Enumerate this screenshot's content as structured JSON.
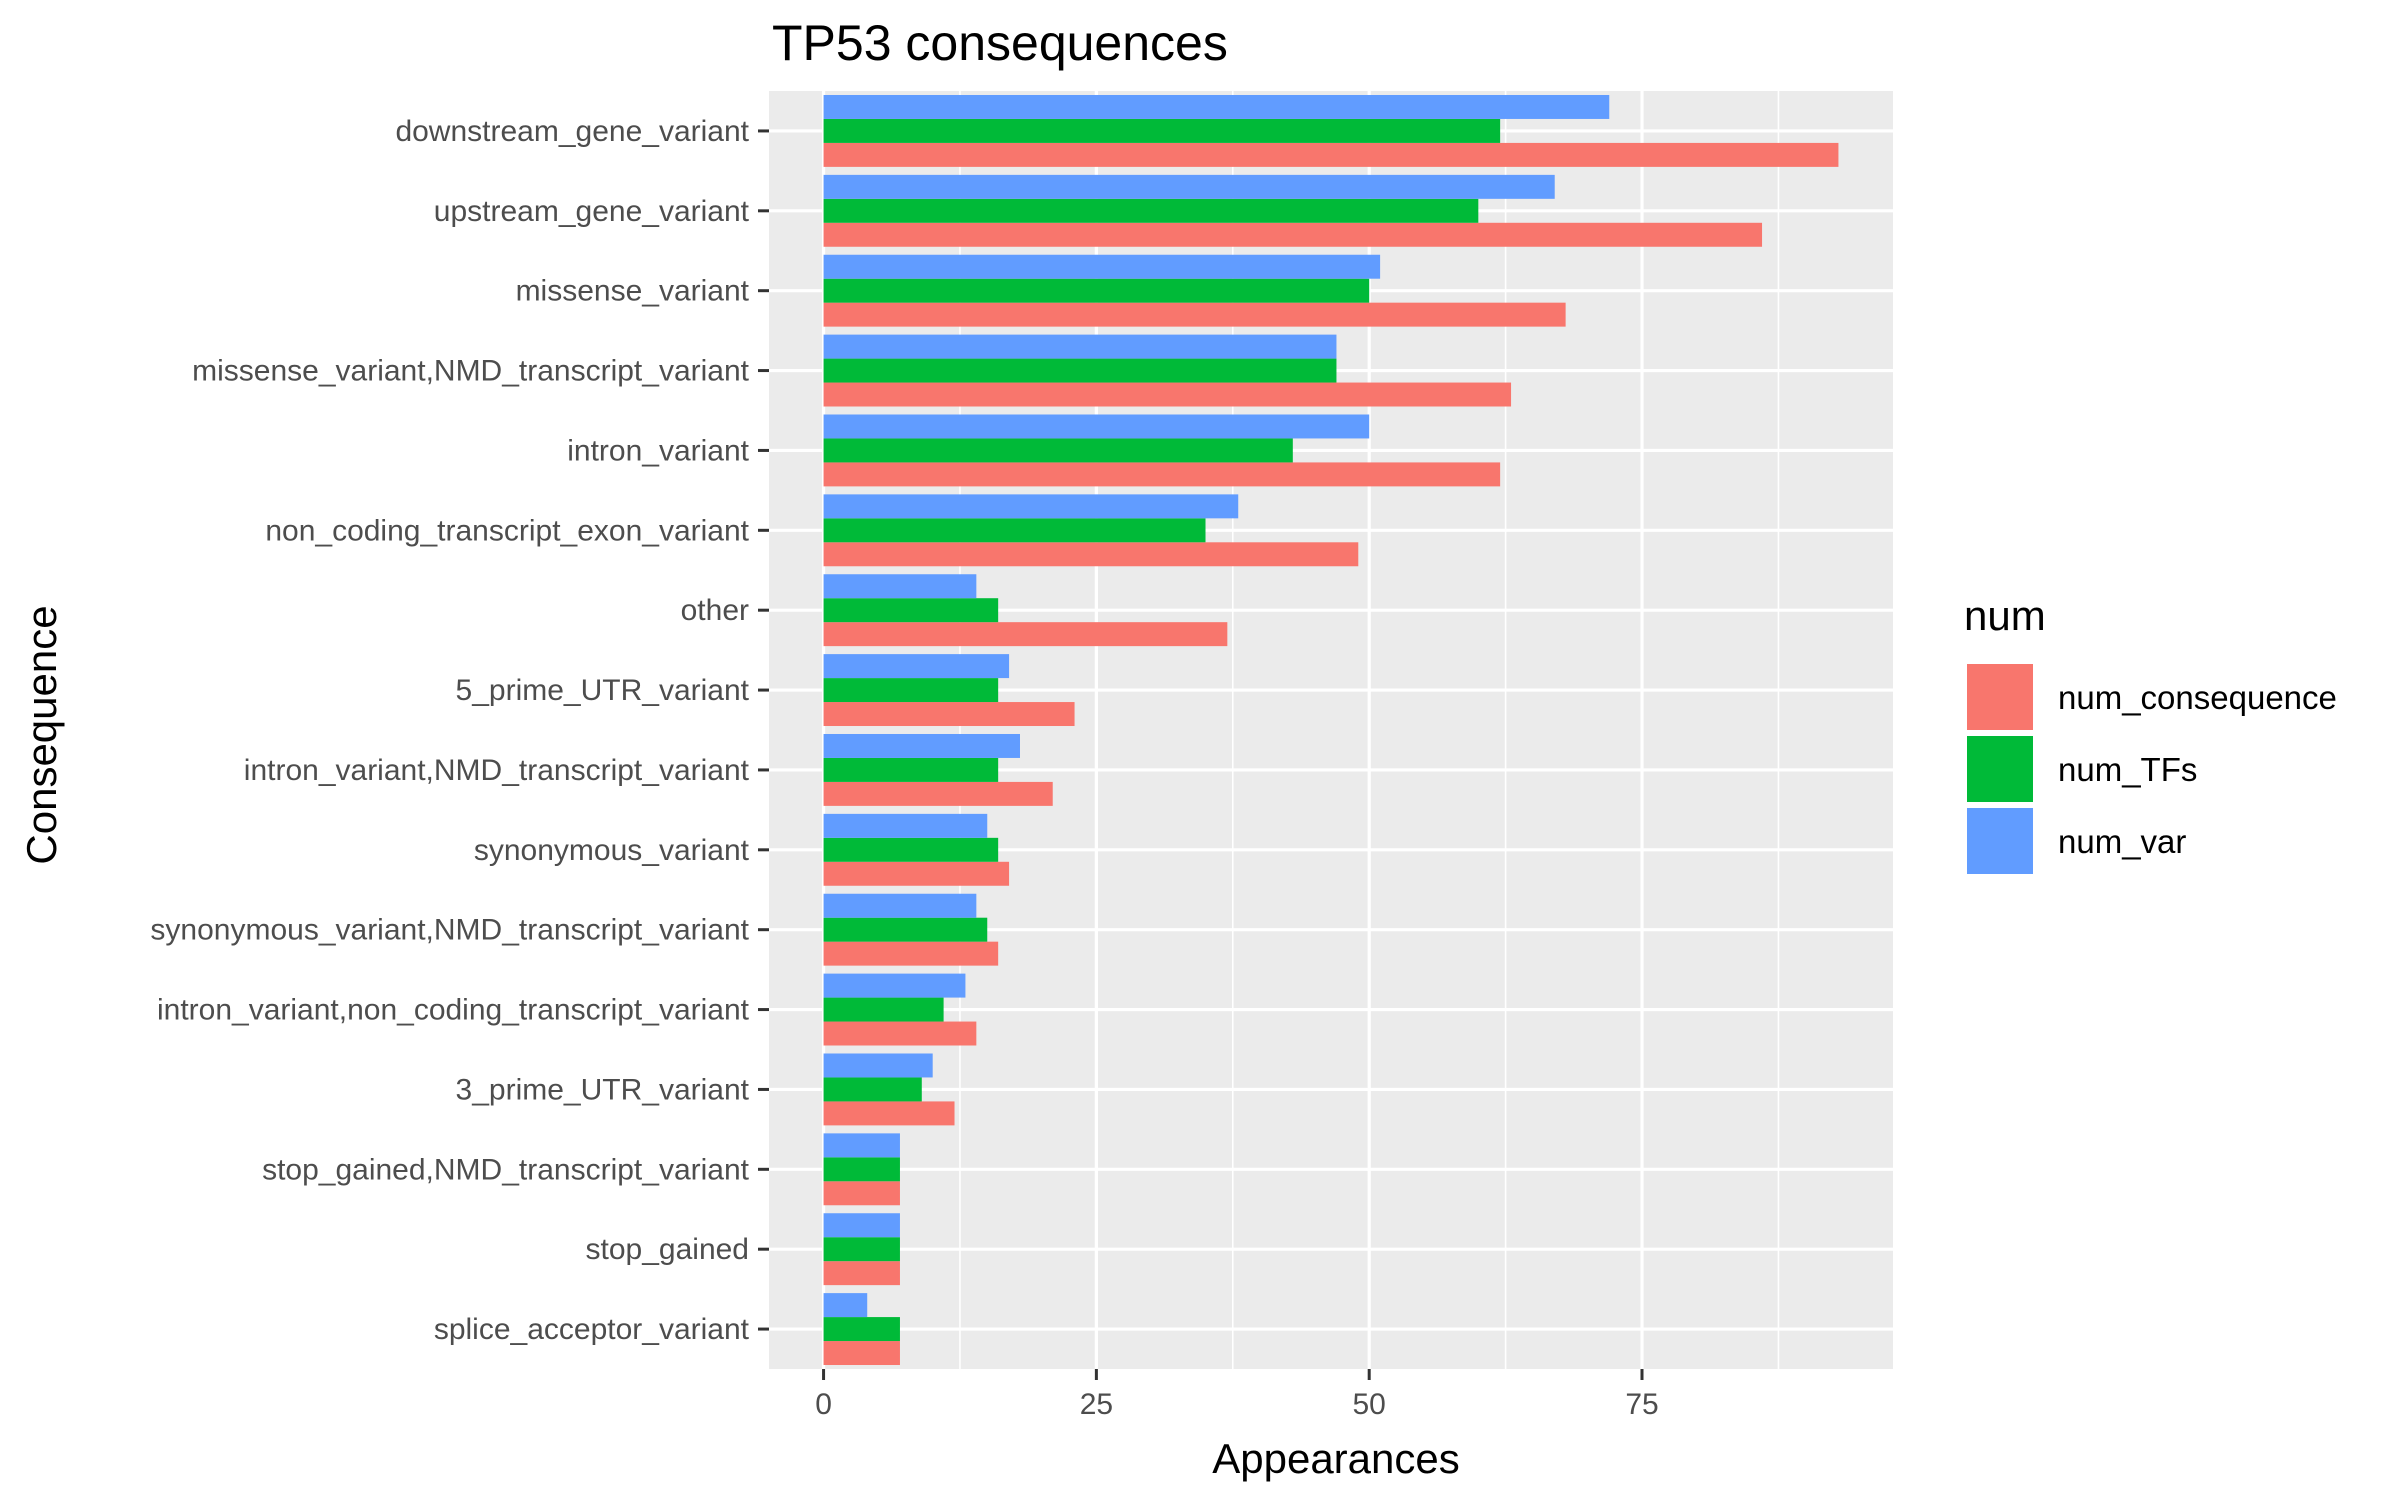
{
  "chart_data": {
    "type": "bar",
    "orientation": "horizontal",
    "title": "TP53 consequences",
    "xlabel": "Appearances",
    "ylabel": "Consequence",
    "xlim": [
      -5,
      98
    ],
    "x_ticks": [
      0,
      25,
      50,
      75
    ],
    "x_tick_labels": [
      "0",
      "25",
      "50",
      "75"
    ],
    "grid": true,
    "legend": {
      "title": "num",
      "position": "right"
    },
    "categories": [
      "downstream_gene_variant",
      "upstream_gene_variant",
      "missense_variant",
      "missense_variant,NMD_transcript_variant",
      "intron_variant",
      "non_coding_transcript_exon_variant",
      "other",
      "5_prime_UTR_variant",
      "intron_variant,NMD_transcript_variant",
      "synonymous_variant",
      "synonymous_variant,NMD_transcript_variant",
      "intron_variant,non_coding_transcript_variant",
      "3_prime_UTR_variant",
      "stop_gained,NMD_transcript_variant",
      "stop_gained",
      "splice_acceptor_variant"
    ],
    "series": [
      {
        "name": "num_consequence",
        "color": "#F8766D",
        "values": [
          93,
          86,
          68,
          63,
          62,
          49,
          37,
          23,
          21,
          17,
          16,
          14,
          12,
          7,
          7,
          7
        ]
      },
      {
        "name": "num_TFs",
        "color": "#00BA38",
        "values": [
          62,
          60,
          50,
          47,
          43,
          35,
          16,
          16,
          16,
          16,
          15,
          11,
          9,
          7,
          7,
          7
        ]
      },
      {
        "name": "num_var",
        "color": "#619CFF",
        "values": [
          72,
          67,
          51,
          47,
          50,
          38,
          14,
          17,
          18,
          15,
          14,
          13,
          10,
          7,
          7,
          4
        ]
      }
    ]
  },
  "colors": {
    "panel_background": "#EBEBEB",
    "grid_major": "#FFFFFF",
    "grid_minor": "#F5F5F5",
    "tick_color": "#333333"
  }
}
